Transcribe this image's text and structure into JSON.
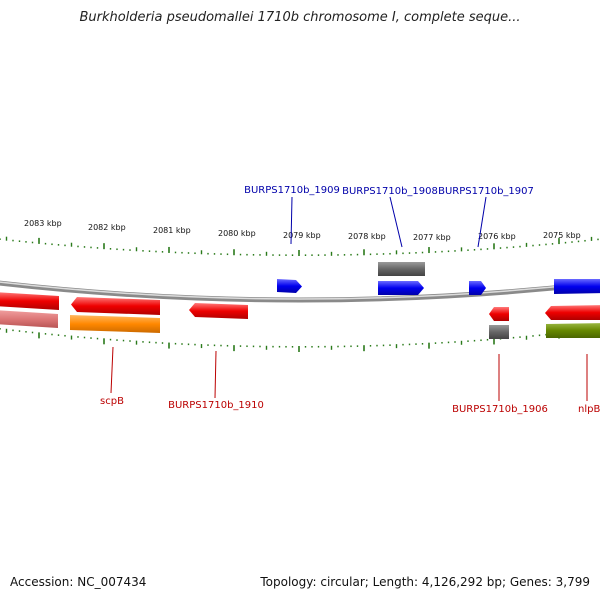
{
  "title": "Burkholderia pseudomallei 1710b chromosome I, complete seque...",
  "footer": {
    "accession": "Accession: NC_007434",
    "topology": "Topology: circular; Length: 4,126,292 bp; Genes: 3,799"
  },
  "scale_labels": [
    "2083 kbp",
    "2082 kbp",
    "2081 kbp",
    "2080 kbp",
    "2079 kbp",
    "2078 kbp",
    "2077 kbp",
    "2076 kbp",
    "2075 kbp"
  ],
  "gene_labels_top": [
    "BURPS1710b_1909",
    "BURPS1710b_1908",
    "BURPS1710b_1907"
  ],
  "gene_labels_bottom": [
    "scpB",
    "BURPS1710b_1910",
    "BURPS1710b_1906",
    "nlpB"
  ],
  "colors": {
    "forward_cds": "#0000ee",
    "reverse_cds": "#ee0000",
    "gray_feature": "#666666",
    "orange_feature": "#ff8800",
    "olive_feature": "#668800",
    "pink_feature": "#dd7777",
    "tick": "#2a7a1a",
    "backbone": "#888888",
    "top_label": "#0000aa",
    "bottom_label": "#bb0000"
  }
}
